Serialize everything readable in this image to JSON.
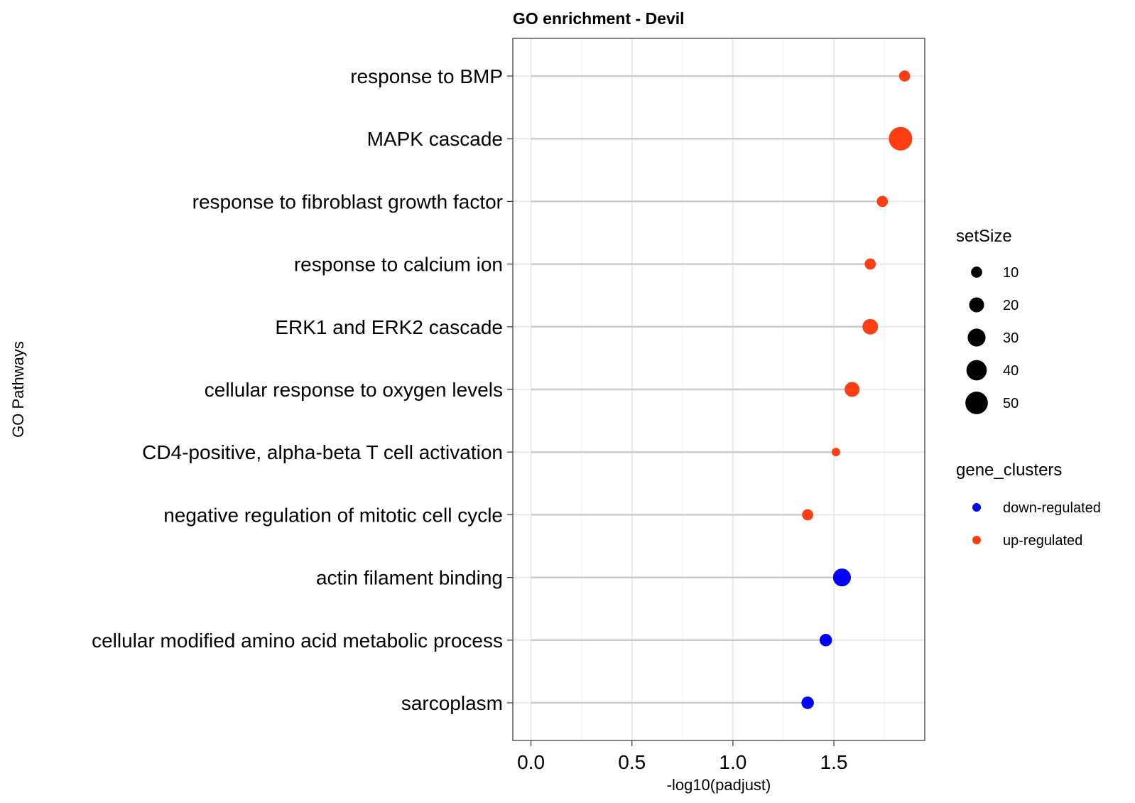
{
  "chart_data": {
    "type": "scatter",
    "title": "GO enrichment - Devil",
    "xlabel": "-log10(padjust)",
    "ylabel": "GO Pathways",
    "xlim": [
      -0.09,
      1.95
    ],
    "xticks": [
      0.0,
      0.5,
      1.0,
      1.5
    ],
    "xtick_labels": [
      "0.0",
      "0.5",
      "1.0",
      "1.5"
    ],
    "grid": true,
    "categories": [
      "response to BMP",
      "MAPK cascade",
      "response to fibroblast growth factor",
      "response to calcium ion",
      "ERK1 and ERK2 cascade",
      "cellular response to oxygen levels",
      "CD4-positive, alpha-beta T cell activation",
      "negative regulation of mitotic cell cycle",
      "actin filament binding",
      "cellular modified amino acid metabolic process",
      "sarcoplasm"
    ],
    "points": [
      {
        "category": "response to BMP",
        "x": 1.85,
        "setSize": 10,
        "cluster": "up-regulated"
      },
      {
        "category": "MAPK cascade",
        "x": 1.83,
        "setSize": 55,
        "cluster": "up-regulated"
      },
      {
        "category": "response to fibroblast growth factor",
        "x": 1.74,
        "setSize": 10,
        "cluster": "up-regulated"
      },
      {
        "category": "response to calcium ion",
        "x": 1.68,
        "setSize": 10,
        "cluster": "up-regulated"
      },
      {
        "category": "ERK1 and ERK2 cascade",
        "x": 1.68,
        "setSize": 22,
        "cluster": "up-regulated"
      },
      {
        "category": "cellular response to oxygen levels",
        "x": 1.59,
        "setSize": 20,
        "cluster": "up-regulated"
      },
      {
        "category": "CD4-positive, alpha-beta T cell activation",
        "x": 1.51,
        "setSize": 5,
        "cluster": "up-regulated"
      },
      {
        "category": "negative regulation of mitotic cell cycle",
        "x": 1.37,
        "setSize": 10,
        "cluster": "up-regulated"
      },
      {
        "category": "actin filament binding",
        "x": 1.54,
        "setSize": 30,
        "cluster": "down-regulated"
      },
      {
        "category": "cellular modified amino acid metabolic process",
        "x": 1.46,
        "setSize": 13,
        "cluster": "down-regulated"
      },
      {
        "category": "sarcoplasm",
        "x": 1.37,
        "setSize": 13,
        "cluster": "down-regulated"
      }
    ],
    "size_legend": {
      "title": "setSize",
      "values": [
        10,
        20,
        30,
        40,
        50
      ],
      "labels": [
        "10",
        "20",
        "30",
        "40",
        "50"
      ]
    },
    "color_legend": {
      "title": "gene_clusters",
      "items": [
        {
          "label": "down-regulated",
          "color": "#0000ff"
        },
        {
          "label": "up-regulated",
          "color": "#ff3d12"
        }
      ]
    },
    "colors": {
      "down-regulated": "#0000ff",
      "up-regulated": "#ff3d12",
      "segment": "#cccccc",
      "grid_major": "#e5e5e5",
      "grid_minor": "#f2f2f2",
      "frame": "#333333"
    }
  }
}
